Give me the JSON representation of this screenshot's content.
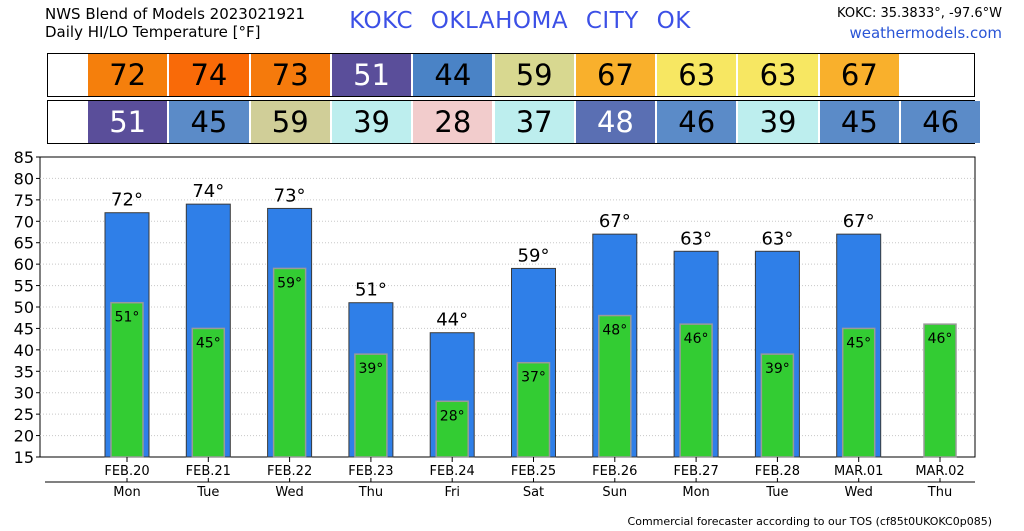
{
  "header": {
    "title_line1": "NWS Blend of Models 2023021921",
    "title_line2": "Daily HI/LO Temperature [°F]",
    "station": "KOKC   OKLAHOMA CITY   OK",
    "coords": "KOKC: 35.3833°, -97.6°W",
    "site": "weathermodels.com"
  },
  "footer": "Commercial forecaster according to our TOS (cf85t0UKOKC0p085)",
  "colors": {
    "hi_bar": "#2f7fe8",
    "lo_bar": "#33cc33"
  },
  "strips": {
    "hi": [
      {
        "value": "72",
        "color": "#f57f0c"
      },
      {
        "value": "74",
        "color": "#f96a08"
      },
      {
        "value": "73",
        "color": "#f57a0c"
      },
      {
        "value": "51",
        "color": "#5a4e9a"
      },
      {
        "value": "44",
        "color": "#4a83c6"
      },
      {
        "value": "59",
        "color": "#d8d890"
      },
      {
        "value": "67",
        "color": "#f9b02c"
      },
      {
        "value": "63",
        "color": "#f7e762"
      },
      {
        "value": "63",
        "color": "#f7e762"
      },
      {
        "value": "67",
        "color": "#f9b02c"
      }
    ],
    "lo": [
      {
        "value": "51",
        "color": "#5a4e9a"
      },
      {
        "value": "45",
        "color": "#5b8bc8"
      },
      {
        "value": "59",
        "color": "#d0ce98"
      },
      {
        "value": "39",
        "color": "#bdeeee"
      },
      {
        "value": "28",
        "color": "#f2cccc"
      },
      {
        "value": "37",
        "color": "#bdeeee"
      },
      {
        "value": "48",
        "color": "#5a6fb3"
      },
      {
        "value": "46",
        "color": "#5b8bc8"
      },
      {
        "value": "39",
        "color": "#bdeeee"
      },
      {
        "value": "45",
        "color": "#5b8bc8"
      },
      {
        "value": "46",
        "color": "#5b8bc8"
      }
    ]
  },
  "chart_data": {
    "type": "bar",
    "categories": [
      "FEB.20",
      "FEB.21",
      "FEB.22",
      "FEB.23",
      "FEB.24",
      "FEB.25",
      "FEB.26",
      "FEB.27",
      "FEB.28",
      "MAR.01",
      "MAR.02"
    ],
    "weekdays": [
      "Mon",
      "Tue",
      "Wed",
      "Thu",
      "Fri",
      "Sat",
      "Sun",
      "Mon",
      "Tue",
      "Wed",
      "Thu"
    ],
    "series": [
      {
        "values": [
          72,
          74,
          73,
          51,
          44,
          59,
          67,
          63,
          63,
          67,
          null
        ],
        "labels": [
          "72°",
          "74°",
          "73°",
          "51°",
          "44°",
          "59°",
          "67°",
          "63°",
          "63°",
          "67°",
          ""
        ]
      },
      {
        "values": [
          51,
          45,
          59,
          39,
          28,
          37,
          48,
          46,
          39,
          45,
          46
        ],
        "labels": [
          "51°",
          "45°",
          "59°",
          "39°",
          "28°",
          "37°",
          "48°",
          "46°",
          "39°",
          "45°",
          "46°"
        ]
      }
    ],
    "ylim": [
      15,
      85
    ],
    "yticks": [
      "15",
      "20",
      "25",
      "30",
      "35",
      "40",
      "45",
      "50",
      "55",
      "60",
      "65",
      "70",
      "75",
      "80",
      "85"
    ],
    "grid": true
  }
}
